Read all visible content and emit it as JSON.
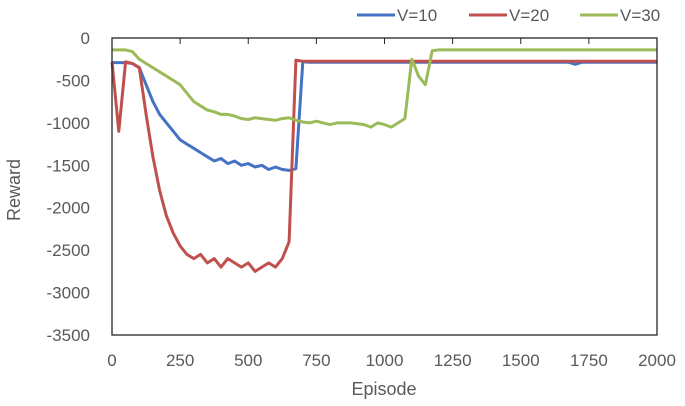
{
  "chart_data": {
    "type": "line",
    "title": "",
    "xlabel": "Episode",
    "ylabel": "Reward",
    "xlim": [
      0,
      2000
    ],
    "ylim": [
      -3500,
      0
    ],
    "xticks": [
      0,
      250,
      500,
      750,
      1000,
      1250,
      1500,
      1750,
      2000
    ],
    "yticks": [
      0,
      -500,
      -1000,
      -1500,
      -2000,
      -2500,
      -3000,
      -3500
    ],
    "grid": false,
    "legend_position": "top-right",
    "x_step": 25,
    "series": [
      {
        "name": "V=10",
        "color": "#4472C4",
        "values": [
          -290,
          -290,
          -290,
          -300,
          -350,
          -550,
          -750,
          -900,
          -1000,
          -1100,
          -1200,
          -1250,
          -1300,
          -1350,
          -1400,
          -1450,
          -1420,
          -1480,
          -1450,
          -1500,
          -1480,
          -1520,
          -1500,
          -1550,
          -1520,
          -1550,
          -1560,
          -1540,
          -280,
          -285,
          -285,
          -285,
          -285,
          -285,
          -285,
          -285,
          -285,
          -285,
          -285,
          -285,
          -285,
          -285,
          -285,
          -285,
          -285,
          -285,
          -285,
          -285,
          -285,
          -285,
          -285,
          -285,
          -285,
          -285,
          -285,
          -285,
          -285,
          -285,
          -285,
          -285,
          -285,
          -285,
          -285,
          -285,
          -285,
          -285,
          -285,
          -285,
          -310,
          -285,
          -285,
          -285,
          -285,
          -285,
          -285,
          -285,
          -285,
          -285,
          -285,
          -285,
          -285
        ]
      },
      {
        "name": "V=20",
        "color": "#C0504D",
        "values": [
          -280,
          -1100,
          -280,
          -300,
          -350,
          -900,
          -1400,
          -1800,
          -2100,
          -2300,
          -2450,
          -2550,
          -2600,
          -2550,
          -2650,
          -2600,
          -2700,
          -2600,
          -2650,
          -2700,
          -2650,
          -2750,
          -2700,
          -2650,
          -2700,
          -2600,
          -2400,
          -260,
          -275,
          -275,
          -275,
          -275,
          -275,
          -275,
          -275,
          -275,
          -275,
          -275,
          -275,
          -275,
          -275,
          -275,
          -275,
          -275,
          -275,
          -275,
          -275,
          -275,
          -275,
          -275,
          -275,
          -275,
          -275,
          -275,
          -275,
          -275,
          -275,
          -275,
          -275,
          -275,
          -275,
          -275,
          -275,
          -275,
          -275,
          -275,
          -275,
          -275,
          -275,
          -275,
          -275,
          -275,
          -275,
          -275,
          -275,
          -275,
          -275,
          -275,
          -275,
          -275,
          -275
        ]
      },
      {
        "name": "V=30",
        "color": "#9BBB59",
        "values": [
          -140,
          -140,
          -140,
          -160,
          -250,
          -300,
          -350,
          -400,
          -450,
          -500,
          -550,
          -650,
          -750,
          -800,
          -850,
          -870,
          -900,
          -900,
          -920,
          -950,
          -960,
          -940,
          -950,
          -960,
          -970,
          -950,
          -940,
          -970,
          -990,
          -1000,
          -980,
          -1000,
          -1020,
          -1000,
          -1000,
          -1000,
          -1010,
          -1020,
          -1050,
          -1000,
          -1020,
          -1050,
          -1000,
          -950,
          -250,
          -450,
          -550,
          -150,
          -140,
          -140,
          -140,
          -140,
          -140,
          -140,
          -140,
          -140,
          -140,
          -140,
          -140,
          -140,
          -140,
          -140,
          -140,
          -140,
          -140,
          -140,
          -140,
          -140,
          -140,
          -140,
          -140,
          -140,
          -140,
          -140,
          -140,
          -140,
          -140,
          -140,
          -140,
          -140,
          -140
        ]
      }
    ]
  }
}
